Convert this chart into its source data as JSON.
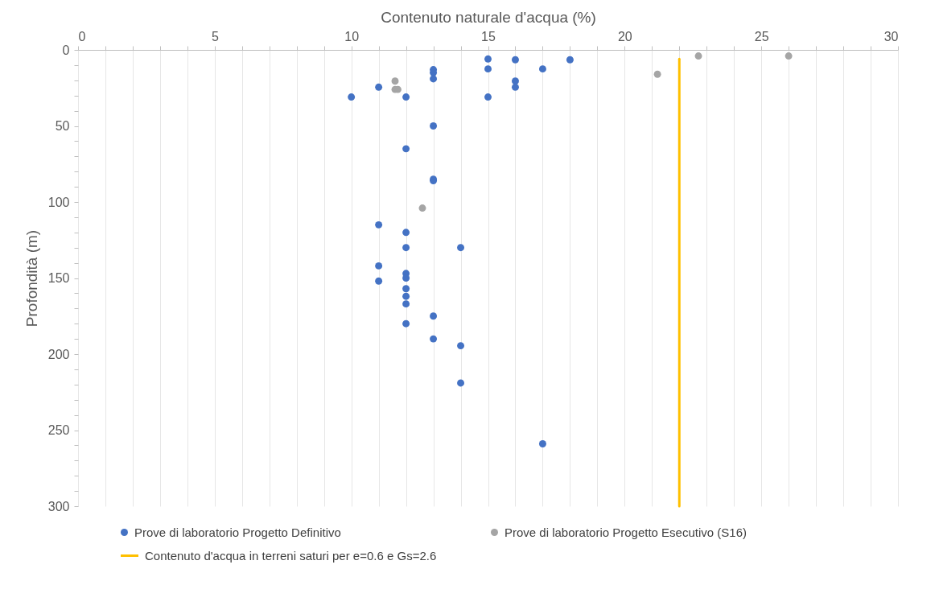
{
  "chart_data": {
    "type": "scatter",
    "xlabel": "Contenuto naturale d'acqua (%)",
    "ylabel": "Profondità (m)",
    "xlim": [
      0,
      30
    ],
    "ylim": [
      300,
      0
    ],
    "xticks": [
      0,
      {
        "value": 1,
        "label": null
      },
      {
        "value": 2,
        "label": null
      },
      {
        "value": 3,
        "label": null
      },
      {
        "value": 4,
        "label": null
      },
      5,
      {
        "value": 6,
        "label": null
      },
      {
        "value": 7,
        "label": null
      },
      {
        "value": 8,
        "label": null
      },
      {
        "value": 9,
        "label": null
      },
      10,
      {
        "value": 11,
        "label": null
      },
      {
        "value": 12,
        "label": null
      },
      {
        "value": 13,
        "label": null
      },
      {
        "value": 14,
        "label": null
      },
      15,
      {
        "value": 16,
        "label": null
      },
      {
        "value": 17,
        "label": null
      },
      {
        "value": 18,
        "label": null
      },
      {
        "value": 19,
        "label": null
      },
      20,
      {
        "value": 21,
        "label": null
      },
      {
        "value": 22,
        "label": null
      },
      {
        "value": 23,
        "label": null
      },
      {
        "value": 24,
        "label": null
      },
      25,
      {
        "value": 26,
        "label": null
      },
      {
        "value": 27,
        "label": null
      },
      {
        "value": 28,
        "label": null
      },
      {
        "value": 29,
        "label": null
      },
      30
    ],
    "yticks": [
      0,
      {
        "value": 10,
        "label": null
      },
      {
        "value": 20,
        "label": null
      },
      {
        "value": 30,
        "label": null
      },
      {
        "value": 40,
        "label": null
      },
      50,
      {
        "value": 60,
        "label": null
      },
      {
        "value": 70,
        "label": null
      },
      {
        "value": 80,
        "label": null
      },
      {
        "value": 90,
        "label": null
      },
      100,
      {
        "value": 110,
        "label": null
      },
      {
        "value": 120,
        "label": null
      },
      {
        "value": 130,
        "label": null
      },
      {
        "value": 140,
        "label": null
      },
      150,
      {
        "value": 160,
        "label": null
      },
      {
        "value": 170,
        "label": null
      },
      {
        "value": 180,
        "label": null
      },
      {
        "value": 190,
        "label": null
      },
      200,
      {
        "value": 210,
        "label": null
      },
      {
        "value": 220,
        "label": null
      },
      {
        "value": 230,
        "label": null
      },
      {
        "value": 240,
        "label": null
      },
      250,
      {
        "value": 260,
        "label": null
      },
      {
        "value": 270,
        "label": null
      },
      {
        "value": 280,
        "label": null
      },
      {
        "value": 290,
        "label": null
      },
      300
    ],
    "grid": "x",
    "legend": "bottom",
    "marker": "circle",
    "series": [
      {
        "name": "Prove di laboratorio Progetto Definitivo",
        "color": "#4472c4",
        "type": "scatter",
        "x": [
          15,
          16,
          18,
          17,
          15,
          13,
          13,
          13,
          16,
          16,
          11,
          10,
          12,
          15,
          13,
          12,
          13,
          13,
          11,
          12,
          12,
          14,
          11,
          12,
          12,
          11,
          12,
          12,
          12,
          13,
          12,
          13,
          14,
          14,
          17
        ],
        "values": [
          6,
          6.5,
          6.5,
          12.5,
          12.5,
          13,
          15,
          19,
          20.5,
          24.5,
          24.5,
          31,
          31,
          31,
          50,
          65,
          85,
          86,
          115,
          120,
          130,
          130,
          142,
          147,
          150,
          152,
          157,
          162,
          167,
          175,
          180,
          190,
          194.5,
          219,
          259
        ]
      },
      {
        "name": "Prove di laboratorio Progetto Esecutivo (S16)",
        "color": "#a5a5a5",
        "type": "scatter",
        "x": [
          22.7,
          26,
          21.2,
          11.6,
          11.6,
          11.7,
          12.6
        ],
        "values": [
          4,
          4,
          16,
          20.5,
          26,
          26,
          104
        ]
      },
      {
        "name": "Contenuto d'acqua in terreni saturi per e=0.6 e Gs=2.6",
        "color": "#ffc000",
        "type": "line",
        "marker": "none",
        "x": [
          22,
          22,
          22
        ],
        "values": [
          6,
          260,
          300
        ]
      }
    ]
  }
}
